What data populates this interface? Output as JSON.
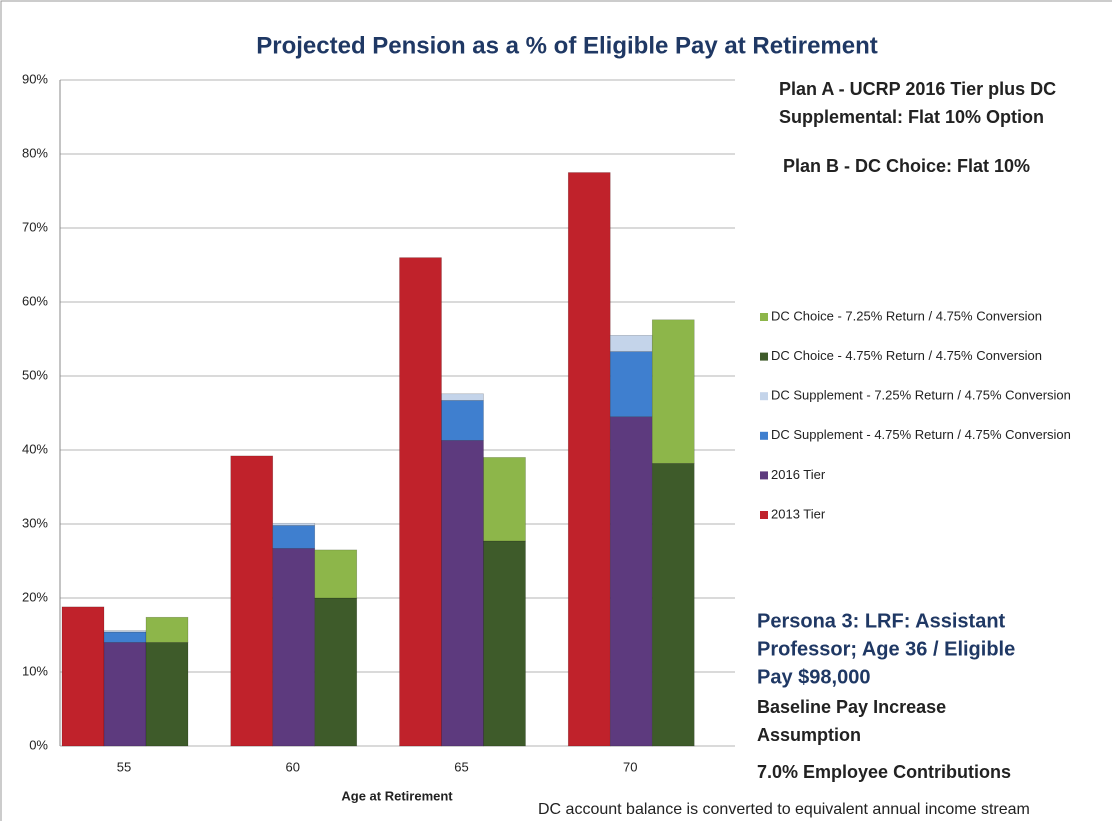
{
  "chart_data": {
    "type": "bar",
    "title": "Projected Pension as a % of Eligible Pay at Retirement",
    "x_label": "Age at Retirement",
    "categories": [
      "55",
      "60",
      "65",
      "70"
    ],
    "series": [
      {
        "name": "2013 Tier",
        "color": "#c0222b",
        "stack": 0,
        "values": [
          18.8,
          39.2,
          66,
          77.5
        ]
      },
      {
        "name": "2016 Tier",
        "color": "#5d3a7e",
        "stack": 1,
        "values": [
          14,
          26.7,
          41.3,
          44.5
        ]
      },
      {
        "name": "DC Supplement - 4.75% Return / 4.75% Conversion",
        "color": "#3f7fcf",
        "stack": 1,
        "values": [
          1.4,
          3.1,
          5.4,
          8.8
        ]
      },
      {
        "name": "DC Supplement - 7.25% Return / 4.75% Conversion",
        "color": "#c4d4ea",
        "stack": 1,
        "values": [
          0.2,
          0.3,
          0.9,
          2.2
        ]
      },
      {
        "name": "DC Choice - 4.75% Return / 4.75% Conversion",
        "color": "#3e5b2a",
        "stack": 2,
        "values": [
          14,
          20,
          27.7,
          38.2
        ]
      },
      {
        "name": "DC Choice - 7.25% Return / 4.75% Conversion",
        "color": "#8db64a",
        "stack": 2,
        "values": [
          3.4,
          6.5,
          11.3,
          19.4
        ]
      }
    ],
    "ylim": [
      0,
      90
    ],
    "yticks": [
      {
        "value": 0,
        "label": "0%"
      },
      {
        "value": 10,
        "label": "10%"
      },
      {
        "value": 20,
        "label": "20%"
      },
      {
        "value": 30,
        "label": "30%"
      },
      {
        "value": 40,
        "label": "40%"
      },
      {
        "value": 50,
        "label": "50%"
      },
      {
        "value": 60,
        "label": "60%"
      },
      {
        "value": 70,
        "label": "70%"
      },
      {
        "value": 80,
        "label": "80%"
      },
      {
        "value": 90,
        "label": "90%"
      }
    ],
    "grid": true,
    "annotations": {
      "plan_a": [
        "Plan A - UCRP 2016 Tier plus DC",
        "Supplemental: Flat 10% Option"
      ],
      "plan_b": "Plan B - DC Choice: Flat 10%",
      "persona": [
        "Persona 3: LRF: Assistant",
        "Professor; Age 36 / Eligible",
        "Pay $98,000"
      ],
      "baseline": [
        "Baseline Pay Increase",
        "Assumption"
      ],
      "contributions": "7.0% Employee Contributions",
      "footnote": "DC account balance is converted to equivalent annual income stream"
    }
  }
}
